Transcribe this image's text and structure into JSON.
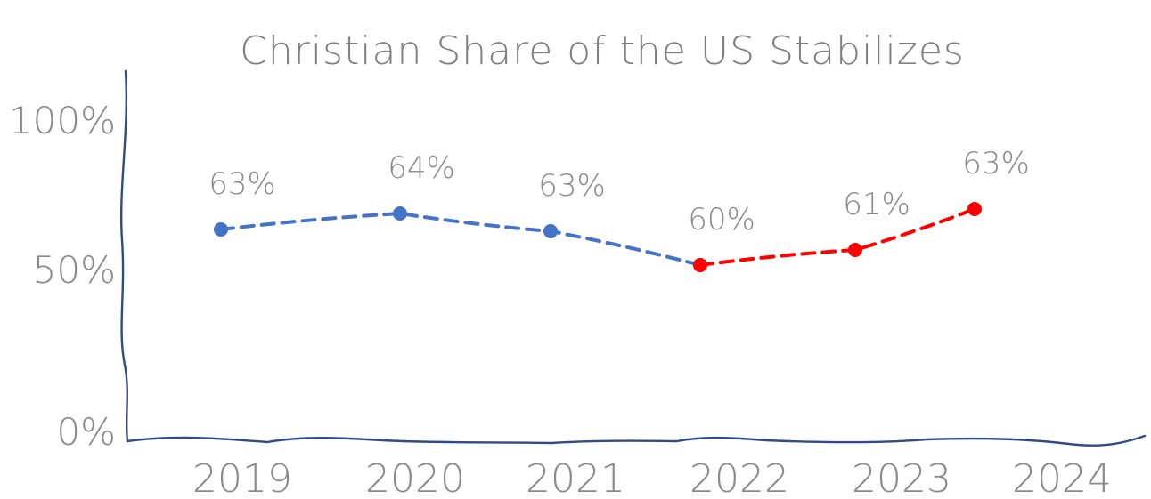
{
  "chart_data": {
    "type": "line",
    "title": "Christian Share of the US Stabilizes",
    "xlabel": "",
    "ylabel": "",
    "categories": [
      "2019",
      "2020",
      "2021",
      "2022",
      "2023",
      "2024"
    ],
    "y_ticks": [
      "0%",
      "50%",
      "100%"
    ],
    "ylim": [
      0,
      100
    ],
    "grid": false,
    "series": [
      {
        "x": [
          "2019",
          "2020",
          "2021",
          "2022"
        ],
        "values": [
          63,
          64,
          63,
          60
        ],
        "labels": [
          "63%",
          "64%",
          "63%",
          "60%"
        ],
        "color": "#4472c4",
        "style": "dashed"
      },
      {
        "x": [
          "2022",
          "2023",
          "2024"
        ],
        "values": [
          60,
          61,
          63
        ],
        "labels": [
          "",
          "61%",
          "63%"
        ],
        "color": "#ff0000",
        "style": "dashed"
      }
    ],
    "axis_color": "#2f4b8a",
    "text_color": "#8a8a8a"
  }
}
